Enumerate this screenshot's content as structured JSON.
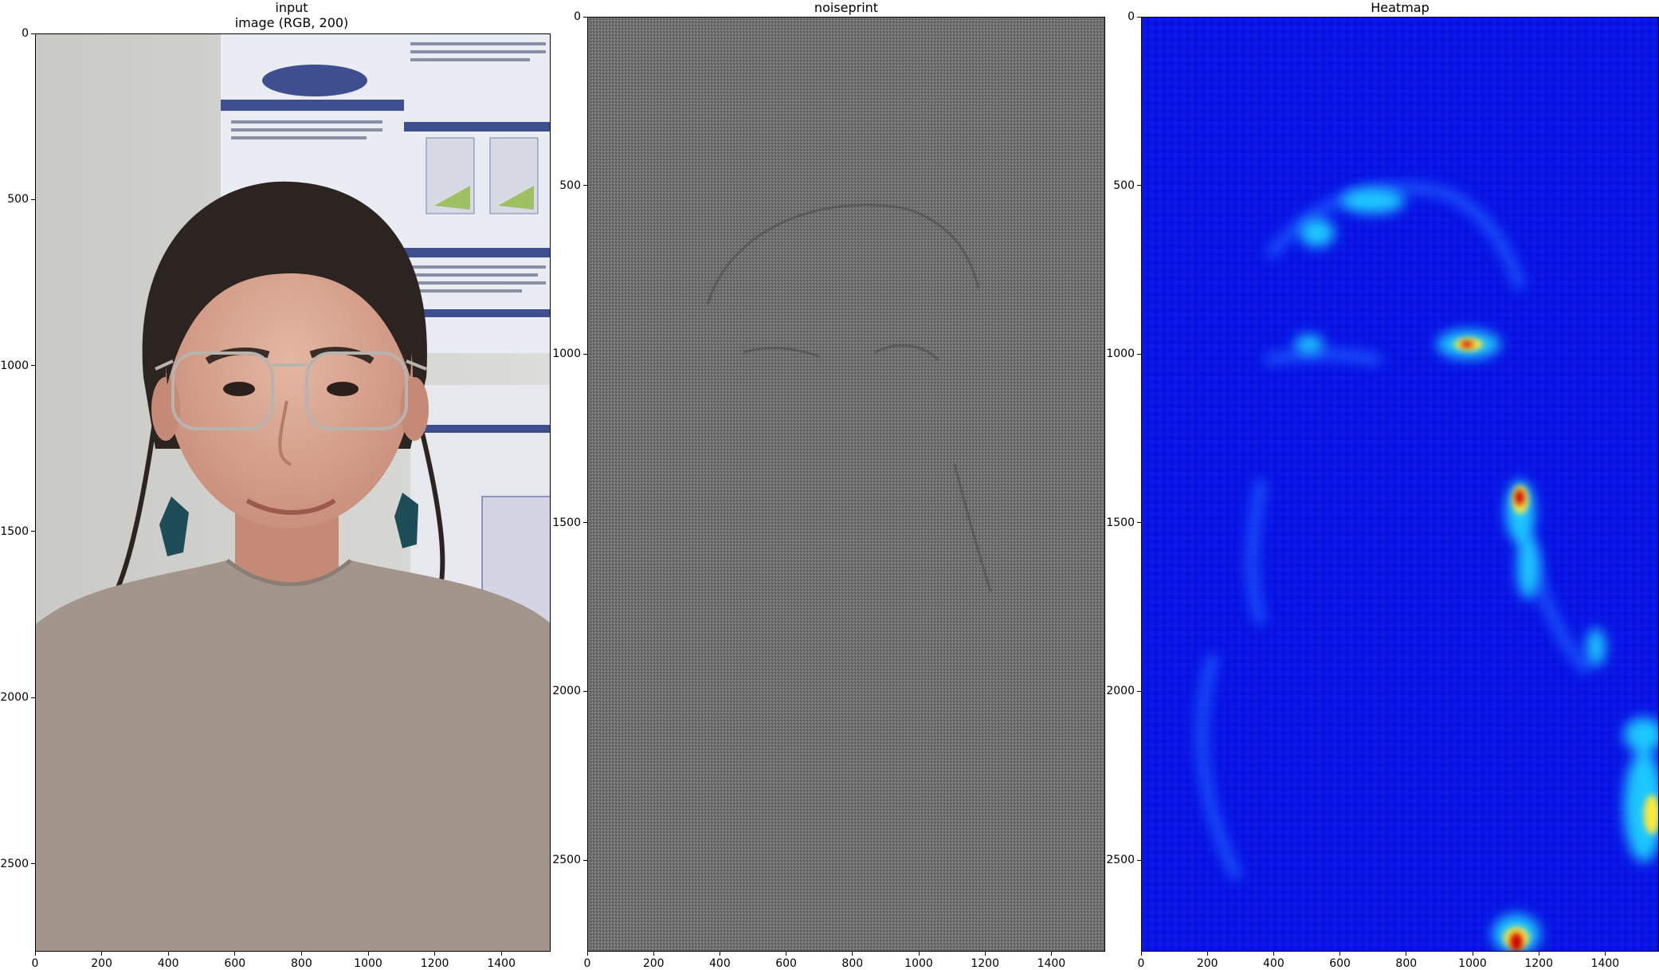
{
  "panels": [
    {
      "id": "input",
      "title_lines": [
        "input",
        "image (RGB, 200)"
      ],
      "x_ticks": [
        "0",
        "200",
        "400",
        "600",
        "800",
        "1000",
        "1200",
        "1400"
      ],
      "y_ticks": [
        "0",
        "500",
        "1000",
        "1500",
        "2000",
        "2500"
      ]
    },
    {
      "id": "noiseprint",
      "title_lines": [
        "noiseprint"
      ],
      "x_ticks": [
        "0",
        "200",
        "400",
        "600",
        "800",
        "1000",
        "1200",
        "1400"
      ],
      "y_ticks": [
        "0",
        "500",
        "1000",
        "1500",
        "2000",
        "2500"
      ]
    },
    {
      "id": "heatmap",
      "title_lines": [
        "Heatmap"
      ],
      "x_ticks": [
        "0",
        "200",
        "400",
        "600",
        "800",
        "1000",
        "1200",
        "1400"
      ],
      "y_ticks": [
        "0",
        "500",
        "1000",
        "1500",
        "2000",
        "2500"
      ]
    }
  ],
  "colors": {
    "noise_gray": "#6b6b6b",
    "heatmap_background": "#0a14e6",
    "heatmap_hot": "#cc0000"
  }
}
